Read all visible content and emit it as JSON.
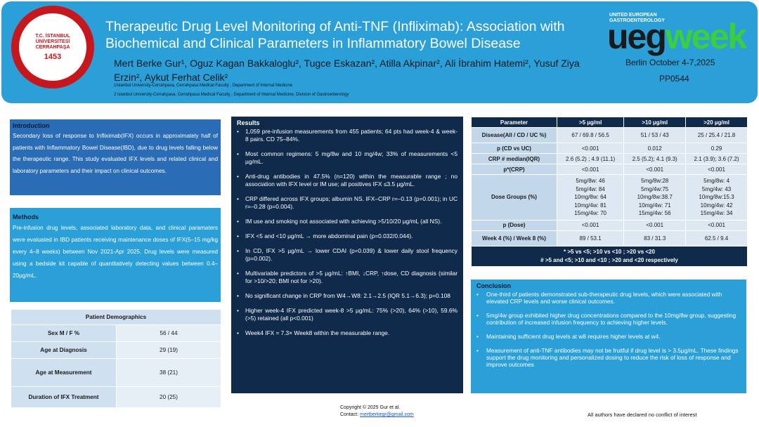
{
  "header": {
    "seal_arc_text": "T.C. İSTANBUL ÜNİVERSİTESİ CERRAHPAŞA",
    "seal_year": "1453",
    "title": "Therapeutic Drug Level Monitoring of Anti-TNF (Infliximab): Association with Biochemical and Clinical Parameters in Inflammatory Bowel Disease",
    "authors": "Mert Berke Gur¹, Oguz Kagan Bakkaloglu², Tugce Eskazan², Atilla Akpinar², Ali İbrahim Hatemi², Yusuf Ziya Erzin², Aykut Ferhat Celik²",
    "affiliation_1": "1Istanbul University-Cerrahpasa, Cerrahpasa Medical Faculty , Department of Internal Medicine",
    "affiliation_2": "2 Istanbul University-Cerrahpasa, Cerrahpasa Medical Faculty , Department of Internal Medicine, Division of Gastroenterology",
    "logo_org": "UNITED EUROPEAN GASTROENTEROLOGY",
    "logo_ueg": "ueg",
    "logo_week": "week",
    "event": "Berlin October 4-7,2025",
    "poster_code": "PP0544"
  },
  "introduction": {
    "title": "Introduction",
    "text": "Secondary loss of response to Infliximab(IFX) occurs in approximately half of patients with Inflammatory Bowel Disease(IBD), due to drug levels falling below the therapeutic range. This study evaluated IFX levels and related clinical and laboratory parameters and their impact on clinical outcomes."
  },
  "methods": {
    "title": "Methods",
    "text": "Pre-infusion drug levels, associated laboratory data, and clinical paramaters were evaluated in IBD patients receiving maintenance doses of IFX(5–15 mg/kg every 4–8 weeks) between Nov 2021-Apr 2025. Drug levels were measured using a bedside kit capable of quantitatively detecting values between 0.4–20µg/mL."
  },
  "demographics": {
    "title": "Patient Demographics",
    "rows": [
      {
        "label": "Sex M / F %",
        "value": "56 / 44"
      },
      {
        "label": "Age at Diagnosis",
        "value": "29 (19)"
      },
      {
        "label": "Age at Measurement",
        "value": "38 (21)"
      },
      {
        "label": "Duration of IFX Treatment",
        "value": "20 (25)"
      }
    ]
  },
  "results": {
    "title": "Results",
    "items": [
      "1,059 pre-infusion measurements from 455 patients; 64 pts had week-4 & week-8 pairs. CD 75–84%.",
      "Most common regimens: 5 mg/8w and 10 mg/4w; 33% of measurements <5 µg/mL.",
      "Anti-drug antibodies in 47.5% (n=120) within the measurable range ; no association with IFX level or IM use; all positives IFX ≤3.5 µg/mL.",
      "CRP differed across IFX groups; albumin NS. IFX–CRP r=–0.13 (p=0.001); in UC r=–0.28 (p=0.004).",
      "IM use and smoking not associated with achieving >5/10/20 µg/mL (all NS).",
      "IFX <5 and <10 µg/mL → more abdominal pain (p=0.032/0.044).",
      "In CD, IFX >5 µg/mL → lower CDAI (p=0.039) & lower daily stool frequency (p=0.002).",
      "Multivariable predictors of >5 µg/mL: ↑BMI, ↓CRP, ↑dose, CD diagnosis (similar for >10/>20; BMI not for >20).",
      "No significant change in CRP from W4→W8: 2.1→2.5 (IQR 5.1→6.3); p=0.108",
      "Higher week-4 IFX predicted week-8 >5 µg/mL: 75% (>20), 64% (>10), 59.6% (>5) retained (all p<0.001)",
      "Week4 IFX ≈ 7.3× Week8 within the measurable range."
    ]
  },
  "parameter_table": {
    "headers": [
      "Parameter",
      ">5 µg/ml",
      ">10 µg/ml",
      ">20 µg/ml"
    ],
    "rows": [
      {
        "label": "Disease(All / CD / UC %)",
        "values": [
          "67 / 69.8 / 56.5",
          "51 / 53 / 43",
          "25 / 25.4 / 21.8"
        ]
      },
      {
        "label": "p (CD vs UC)",
        "values": [
          "<0.001",
          "0.012",
          "0.29"
        ]
      },
      {
        "label": "CRP # median(IQR)",
        "values": [
          "2.6 (5.2) ; 4.9 (11.1)",
          "2.5 (5.2); 4.1 (9.3)",
          "2.1 (3.9); 3.6 (7.2)"
        ]
      },
      {
        "label": "p*(CRP)",
        "values": [
          "<0.001",
          "<0.001",
          "<0.001"
        ]
      }
    ],
    "dose_label": "Dose Groups (%)",
    "dose_values": [
      [
        "5mg/8w: 46",
        "5mg/4w: 84",
        "10mg/8w: 64",
        "10mg/4w: 81",
        "15mg/4w: 70"
      ],
      [
        "5mg/8w:28",
        "5mg/4w:75",
        "10mg/8w:38.7",
        "10mg/4w: 71",
        "15mg/4w: 56"
      ],
      [
        "5mg/8w: 4",
        "5mg/4w: 43",
        "10mg/8w:15.3",
        "10mg/4w: 42",
        "15mg/4w: 34"
      ]
    ],
    "rows_after": [
      {
        "label": "p (Dose)",
        "values": [
          "<0.001",
          "<0.001",
          "<0.001"
        ]
      },
      {
        "label": "Week 4 (%) / Week 8 (%)",
        "values": [
          "89 / 53.1",
          "83 / 31.3",
          "62.5 / 9.4"
        ]
      }
    ],
    "footnote_1": "* >5 vs <5; >10 vs <10 ; >20 vs <20",
    "footnote_2": "# >5 and <5; >10 and <10 ; >20 and <20 respectively"
  },
  "conclusion": {
    "title": "Conclusion",
    "items": [
      "One-third of patients demonstrated sub-therapeutic drug levels, which were associated with elevated CRP levels and worse clinical outcomes.",
      "5mg/4w group exhibited higher drug concentrations compared to the 10mg/8w group, suggesting contribution of increased infusion frequency to achieving higher levels.",
      "Maintaining sufficient drug levels at w8 requires higher levels at w4.",
      "Measurement of anti-TNF antibodies may not be fruitful if drug level is > 3.5µg/mL. These findings support the drug monitoring and personalized dosing to reduce the risk of loss of response and improve outcomes"
    ]
  },
  "footer": {
    "copyright": "Copyright © 2025 Gur et al.",
    "contact_label": "Contact:",
    "contact_email": "mertberkegr@gmail.com",
    "coi": "All authors have declared no conflict of interest"
  },
  "colors": {
    "header_blue": "#2a9fd8",
    "navy": "#0f2a4a",
    "intro_blue": "#2a6cb6",
    "ueg_green": "#3bd03a",
    "seal_red": "#c8161d"
  }
}
